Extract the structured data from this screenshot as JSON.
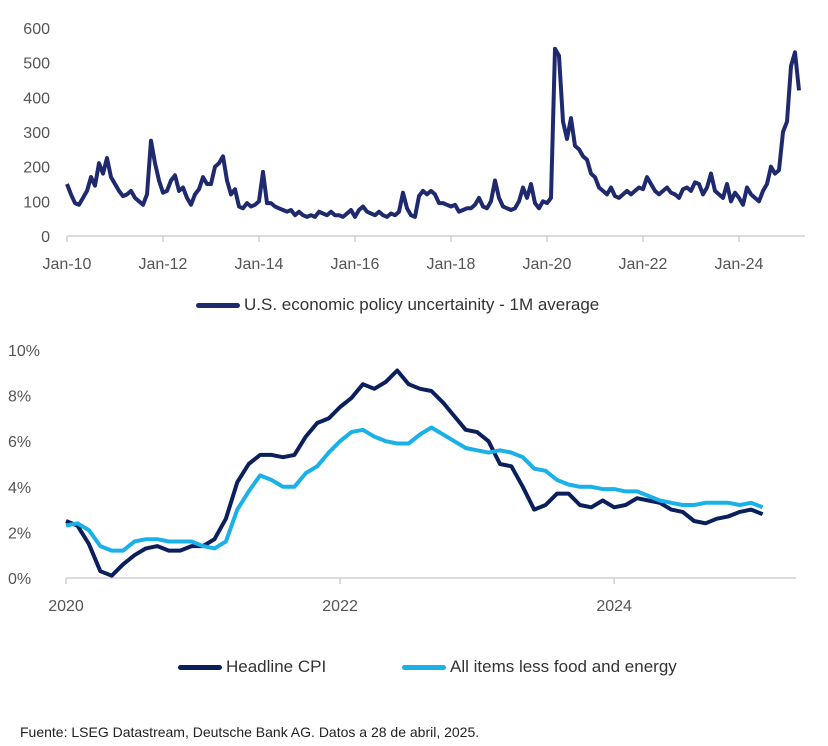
{
  "chart_data": [
    {
      "type": "line",
      "yticks": [
        "0",
        "100",
        "200",
        "300",
        "400",
        "500",
        "600"
      ],
      "ylim": [
        0,
        600
      ],
      "xticks": [
        "Jan-10",
        "Jan-12",
        "Jan-14",
        "Jan-16",
        "Jan-18",
        "Jan-20",
        "Jan-22",
        "Jan-24"
      ],
      "x_start": "Jan-2010",
      "x_frequency": "monthly",
      "grid": false,
      "legend_position": "bottom",
      "series": [
        {
          "name": "U.S. economic policy uncertainity - 1M average",
          "color": "#1f2a6e",
          "values": [
            150,
            120,
            95,
            90,
            110,
            130,
            170,
            145,
            210,
            180,
            225,
            170,
            150,
            130,
            115,
            120,
            130,
            110,
            100,
            90,
            120,
            275,
            210,
            160,
            125,
            130,
            160,
            175,
            130,
            140,
            110,
            90,
            120,
            135,
            170,
            150,
            150,
            200,
            210,
            230,
            160,
            120,
            135,
            85,
            80,
            95,
            85,
            90,
            100,
            185,
            95,
            95,
            85,
            80,
            75,
            70,
            75,
            60,
            70,
            60,
            55,
            60,
            55,
            70,
            65,
            60,
            70,
            60,
            60,
            55,
            65,
            75,
            55,
            75,
            85,
            70,
            65,
            60,
            70,
            60,
            55,
            65,
            60,
            70,
            125,
            80,
            60,
            55,
            115,
            130,
            120,
            130,
            120,
            95,
            95,
            90,
            85,
            90,
            70,
            75,
            80,
            80,
            90,
            110,
            85,
            80,
            100,
            160,
            110,
            85,
            80,
            75,
            80,
            100,
            140,
            110,
            150,
            95,
            80,
            100,
            95,
            110,
            540,
            520,
            330,
            280,
            340,
            260,
            250,
            230,
            220,
            180,
            170,
            140,
            130,
            120,
            140,
            115,
            110,
            120,
            130,
            120,
            130,
            140,
            135,
            170,
            150,
            130,
            120,
            130,
            140,
            125,
            120,
            110,
            135,
            140,
            130,
            155,
            150,
            120,
            140,
            180,
            130,
            120,
            110,
            150,
            100,
            125,
            110,
            90,
            140,
            120,
            110,
            100,
            130,
            150,
            200,
            180,
            190,
            300,
            330,
            490,
            530,
            420
          ]
        }
      ]
    },
    {
      "type": "line",
      "yticks": [
        "0%",
        "2%",
        "4%",
        "6%",
        "8%",
        "10%"
      ],
      "ylim": [
        0,
        10
      ],
      "xticks": [
        "2020",
        "2022",
        "2024"
      ],
      "x_start": "Jan-2020",
      "x_frequency": "monthly",
      "grid": false,
      "legend_position": "bottom",
      "series": [
        {
          "name": "Headline CPI",
          "color": "#0b1f5c",
          "values": [
            2.5,
            2.3,
            1.5,
            0.3,
            0.1,
            0.6,
            1.0,
            1.3,
            1.4,
            1.2,
            1.2,
            1.4,
            1.4,
            1.7,
            2.6,
            4.2,
            5.0,
            5.4,
            5.4,
            5.3,
            5.4,
            6.2,
            6.8,
            7.0,
            7.5,
            7.9,
            8.5,
            8.3,
            8.6,
            9.1,
            8.5,
            8.3,
            8.2,
            7.7,
            7.1,
            6.5,
            6.4,
            6.0,
            5.0,
            4.9,
            4.0,
            3.0,
            3.2,
            3.7,
            3.7,
            3.2,
            3.1,
            3.4,
            3.1,
            3.2,
            3.5,
            3.4,
            3.3,
            3.0,
            2.9,
            2.5,
            2.4,
            2.6,
            2.7,
            2.9,
            3.0,
            2.8
          ]
        },
        {
          "name": "All items less food and energy",
          "color": "#1ab0e8",
          "values": [
            2.3,
            2.4,
            2.1,
            1.4,
            1.2,
            1.2,
            1.6,
            1.7,
            1.7,
            1.6,
            1.6,
            1.6,
            1.4,
            1.3,
            1.6,
            3.0,
            3.8,
            4.5,
            4.3,
            4.0,
            4.0,
            4.6,
            4.9,
            5.5,
            6.0,
            6.4,
            6.5,
            6.2,
            6.0,
            5.9,
            5.9,
            6.3,
            6.6,
            6.3,
            6.0,
            5.7,
            5.6,
            5.5,
            5.6,
            5.5,
            5.3,
            4.8,
            4.7,
            4.3,
            4.1,
            4.0,
            4.0,
            3.9,
            3.9,
            3.8,
            3.8,
            3.6,
            3.4,
            3.3,
            3.2,
            3.2,
            3.3,
            3.3,
            3.3,
            3.2,
            3.3,
            3.1
          ]
        }
      ]
    }
  ],
  "source_note": "Fuente: LSEG Datastream, Deutsche Bank AG. Datos a 28 de abril, 2025."
}
